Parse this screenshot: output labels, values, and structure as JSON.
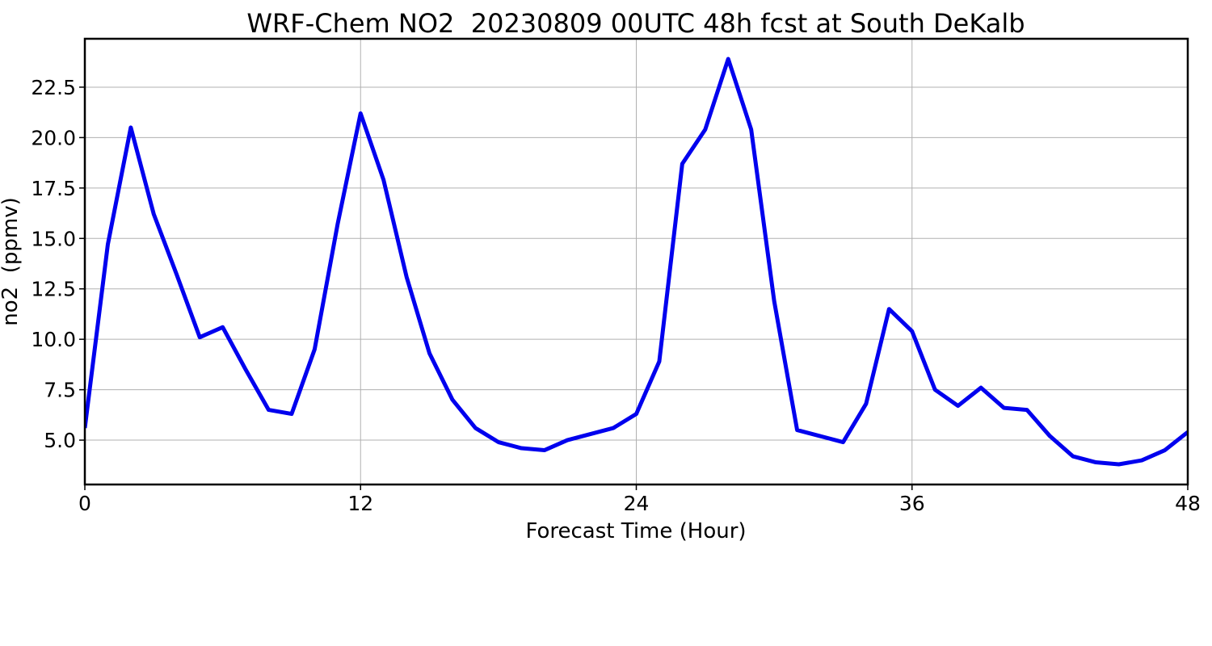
{
  "chart_data": {
    "type": "line",
    "title": "WRF-Chem NO2  20230809 00UTC 48h fcst at South DeKalb",
    "xlabel": "Forecast Time (Hour)",
    "ylabel": "no2  (ppmv)",
    "xlim": [
      0,
      48
    ],
    "ylim": [
      2.8,
      24.9
    ],
    "xticks": [
      0,
      12,
      24,
      36,
      48
    ],
    "yticks": [
      5.0,
      7.5,
      10.0,
      12.5,
      15.0,
      17.5,
      20.0,
      22.5
    ],
    "ytick_labels": [
      "5.0",
      "7.5",
      "10.0",
      "12.5",
      "15.0",
      "17.5",
      "20.0",
      "22.5"
    ],
    "grid": true,
    "line_color": "#0000ee",
    "series": [
      {
        "x": [
          0,
          1,
          2,
          3,
          4,
          5,
          6,
          7,
          8,
          9,
          10,
          11,
          12,
          13,
          14,
          15,
          16,
          17,
          18,
          19,
          20,
          21,
          22,
          23,
          24,
          25,
          26,
          27,
          28,
          29,
          30,
          31,
          32,
          33,
          34,
          35,
          36,
          37,
          38,
          39,
          40,
          41,
          42,
          43,
          44,
          45,
          46,
          47,
          48
        ],
        "y": [
          5.6,
          14.7,
          20.5,
          16.2,
          13.2,
          10.1,
          10.6,
          8.5,
          6.5,
          6.3,
          9.5,
          15.7,
          21.2,
          17.9,
          13.1,
          9.3,
          7.0,
          5.6,
          4.9,
          4.6,
          4.5,
          5.0,
          5.3,
          5.6,
          6.3,
          8.9,
          18.7,
          20.4,
          23.9,
          20.4,
          11.9,
          5.5,
          5.2,
          4.9,
          6.8,
          11.5,
          10.4,
          7.5,
          6.7,
          7.6,
          6.6,
          6.5,
          5.2,
          4.2,
          3.9,
          3.8,
          4.0,
          4.5,
          5.4
        ]
      }
    ]
  }
}
